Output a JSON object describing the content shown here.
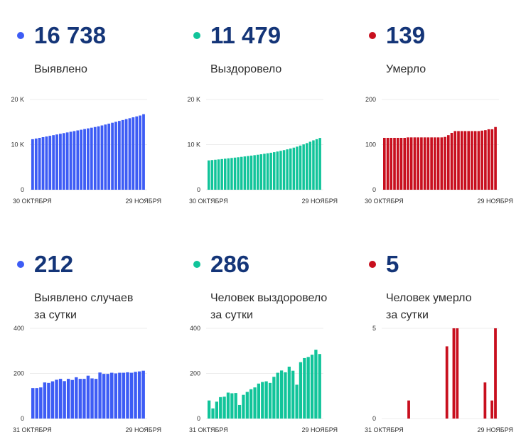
{
  "panels": [
    {
      "number": "16 738",
      "caption": [
        "Выявлено"
      ],
      "color": "#3d5cf5",
      "chart_data": {
        "type": "bar",
        "title": "",
        "series": [
          {
            "values": [
              11200,
              11350,
              11500,
              11650,
              11800,
              11950,
              12100,
              12250,
              12400,
              12550,
              12700,
              12850,
              13000,
              13150,
              13300,
              13450,
              13600,
              13750,
              13900,
              14050,
              14250,
              14450,
              14650,
              14850,
              15050,
              15250,
              15450,
              15650,
              15850,
              16050,
              16250,
              16450,
              16738
            ]
          }
        ],
        "ylim": [
          0,
          20000
        ],
        "yticks": [
          {
            "value": 0,
            "label": "0"
          },
          {
            "value": 10000,
            "label": "10 K"
          },
          {
            "value": 20000,
            "label": "20 K"
          }
        ],
        "x_start_label": "30 ОКТЯБРЯ",
        "x_end_label": "29 НОЯБРЯ",
        "grid": true
      }
    },
    {
      "number": "11 479",
      "caption": [
        "Выздоровело"
      ],
      "color": "#11c49a",
      "chart_data": {
        "type": "bar",
        "title": "",
        "series": [
          {
            "values": [
              6500,
              6580,
              6650,
              6720,
              6800,
              6880,
              6960,
              7040,
              7120,
              7200,
              7290,
              7380,
              7470,
              7560,
              7660,
              7760,
              7860,
              7970,
              8080,
              8200,
              8330,
              8470,
              8620,
              8780,
              8950,
              9130,
              9330,
              9550,
              9790,
              10050,
              10330,
              10640,
              10950,
              11200,
              11479
            ]
          }
        ],
        "ylim": [
          0,
          20000
        ],
        "yticks": [
          {
            "value": 0,
            "label": "0"
          },
          {
            "value": 10000,
            "label": "10 K"
          },
          {
            "value": 20000,
            "label": "20 K"
          }
        ],
        "x_start_label": "30 ОКТЯБРЯ",
        "x_end_label": "29 НОЯБРЯ",
        "grid": true
      }
    },
    {
      "number": "139",
      "caption": [
        "Умерло"
      ],
      "color": "#c80f1e",
      "chart_data": {
        "type": "bar",
        "title": "",
        "series": [
          {
            "values": [
              115,
              115,
              115,
              115,
              115,
              115,
              115,
              116,
              116,
              116,
              116,
              116,
              116,
              116,
              116,
              116,
              116,
              116,
              117,
              121,
              126,
              130,
              130,
              130,
              130,
              130,
              130,
              130,
              130,
              131,
              132,
              134,
              134,
              139
            ]
          }
        ],
        "ylim": [
          0,
          200
        ],
        "yticks": [
          {
            "value": 0,
            "label": "0"
          },
          {
            "value": 100,
            "label": "100"
          },
          {
            "value": 200,
            "label": "200"
          }
        ],
        "x_start_label": "30 ОКТЯБРЯ",
        "x_end_label": "29 НОЯБРЯ",
        "grid": true
      }
    },
    {
      "number": "212",
      "caption": [
        "Выявлено случаев",
        "за сутки"
      ],
      "color": "#3d5cf5",
      "chart_data": {
        "type": "bar",
        "title": "",
        "series": [
          {
            "values": [
              135,
              135,
              138,
              160,
              158,
              165,
              172,
              176,
              166,
              176,
              171,
              183,
              176,
              176,
              190,
              178,
              176,
              204,
              198,
              198,
              203,
              200,
              203,
              203,
              205,
              203,
              207,
              209,
              212
            ]
          }
        ],
        "ylim": [
          0,
          400
        ],
        "yticks": [
          {
            "value": 0,
            "label": "0"
          },
          {
            "value": 200,
            "label": "200"
          },
          {
            "value": 400,
            "label": "400"
          }
        ],
        "x_start_label": "31 ОКТЯБРЯ",
        "x_end_label": "29 НОЯБРЯ",
        "grid": true
      }
    },
    {
      "number": "286",
      "caption": [
        "Человек выздоровело",
        "за сутки"
      ],
      "color": "#11c49a",
      "chart_data": {
        "type": "bar",
        "title": "",
        "series": [
          {
            "values": [
              80,
              45,
              75,
              95,
              97,
              115,
              112,
              113,
              60,
              105,
              118,
              130,
              138,
              155,
              162,
              165,
              158,
              185,
              203,
              213,
              205,
              230,
              212,
              150,
              250,
              268,
              273,
              283,
              305,
              286
            ]
          }
        ],
        "ylim": [
          0,
          400
        ],
        "yticks": [
          {
            "value": 0,
            "label": "0"
          },
          {
            "value": 200,
            "label": "200"
          },
          {
            "value": 400,
            "label": "400"
          }
        ],
        "x_start_label": "31 ОКТЯБРЯ",
        "x_end_label": "29 НОЯБРЯ",
        "grid": true
      }
    },
    {
      "number": "5",
      "caption": [
        "Человек умерло",
        "за сутки"
      ],
      "color": "#c80f1e",
      "chart_data": {
        "type": "bar",
        "title": "",
        "series": [
          {
            "values": [
              0,
              0,
              0,
              0,
              0,
              0,
              0,
              1,
              0,
              0,
              0,
              0,
              0,
              0,
              0,
              0,
              0,
              0,
              4,
              0,
              5,
              5,
              0,
              0,
              0,
              0,
              0,
              0,
              0,
              2,
              0,
              1,
              5
            ]
          }
        ],
        "ylim": [
          0,
          5
        ],
        "yticks": [
          {
            "value": 0,
            "label": "0"
          },
          {
            "value": 5,
            "label": "5"
          }
        ],
        "x_start_label": "31 ОКТЯБРЯ",
        "x_end_label": "29 НОЯБРЯ",
        "grid": false
      }
    }
  ]
}
